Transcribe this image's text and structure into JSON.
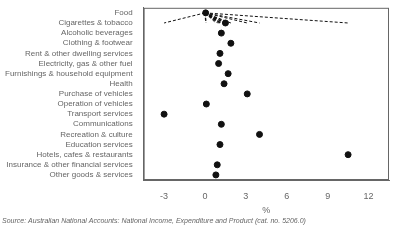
{
  "chart_data": {
    "type": "lollipop",
    "orientation": "horizontal",
    "categories": [
      "Food",
      "Cigarettes & tobacco",
      "Alcoholic beverages",
      "Clothing & footwear",
      "Rent & other dwelling services",
      "Electricity, gas & other fuel",
      "Furnishings & household equipment",
      "Health",
      "Purchase of vehicles",
      "Operation of vehicles",
      "Transport services",
      "Communications",
      "Recreation & culture",
      "Education services",
      "Hotels, cafes & restaurants",
      "Insurance & other financial services",
      "Other goods & services"
    ],
    "values": [
      0.05,
      1.5,
      1.2,
      1.9,
      1.1,
      1.0,
      1.7,
      1.4,
      3.1,
      0.1,
      -3.0,
      1.2,
      4.0,
      1.1,
      10.5,
      0.9,
      0.8
    ],
    "xlim": [
      -4.5,
      13.5
    ],
    "xticks": [
      -3,
      0,
      3,
      6,
      9,
      12
    ],
    "xlabel": "%",
    "annotations": [
      "Source: Australian National Accounts: National Income, Expenditure and Product (cat. no. 5206.0)"
    ],
    "color": "#111111",
    "marker": "circle",
    "line_style": "dashed",
    "grid": false
  }
}
